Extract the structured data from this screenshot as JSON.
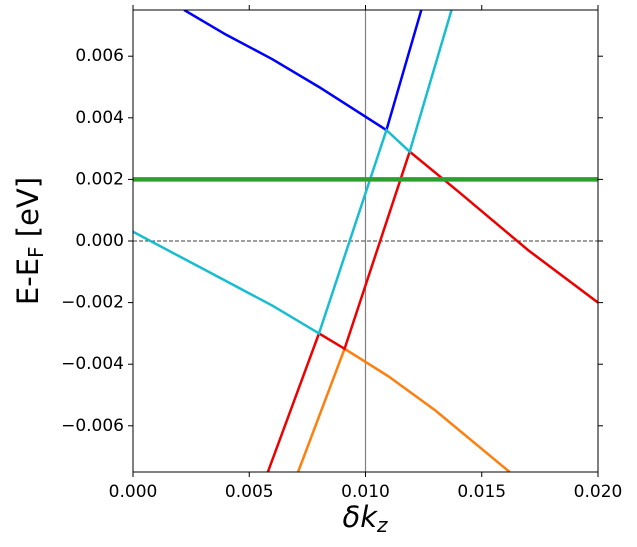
{
  "chart_data": {
    "type": "line",
    "xlabel": {
      "main": "δk",
      "sub": "z"
    },
    "ylabel": {
      "main": "E-E",
      "sub": "F",
      "unit": " [eV]"
    },
    "xlim": [
      0,
      0.02
    ],
    "ylim": [
      -0.0075,
      0.0075
    ],
    "xticks": [
      {
        "value": 0,
        "label": "0.000"
      },
      {
        "value": 0.005,
        "label": "0.005"
      },
      {
        "value": 0.01,
        "label": "0.010"
      },
      {
        "value": 0.015,
        "label": "0.015"
      },
      {
        "value": 0.02,
        "label": "0.020"
      }
    ],
    "yticks": [
      {
        "value": -0.006,
        "label": "−0.006"
      },
      {
        "value": -0.004,
        "label": "−0.004"
      },
      {
        "value": -0.002,
        "label": "−0.002"
      },
      {
        "value": 0,
        "label": "0.000"
      },
      {
        "value": 0.002,
        "label": "0.002"
      },
      {
        "value": 0.004,
        "label": "0.004"
      },
      {
        "value": 0.006,
        "label": "0.006"
      }
    ],
    "hlines": [
      {
        "y": 0,
        "color": "#000000",
        "dashed": true
      }
    ],
    "vlines": [
      {
        "x": 0.01,
        "color": "#808080",
        "dashed": false
      }
    ],
    "series": [
      {
        "color": "#0000ff",
        "width": 2.5,
        "x": [
          0.0022,
          0.004,
          0.006,
          0.008,
          0.0109,
          0.0124
        ],
        "values": [
          0.0075,
          0.0067,
          0.0059,
          0.005,
          0.0036,
          0.0075
        ]
      },
      {
        "color": "#ff7f0e",
        "width": 2.5,
        "x": [
          0.0071,
          0.0091,
          0.011,
          0.013,
          0.0162
        ],
        "values": [
          -0.0075,
          -0.0035,
          -0.0044,
          -0.0055,
          -0.0075
        ]
      },
      {
        "color": "#ee0000",
        "width": 2.5,
        "x": [
          0.0058,
          0.008,
          0.0091,
          0.0119,
          0.014,
          0.017,
          0.02
        ],
        "values": [
          -0.0075,
          -0.003,
          -0.0035,
          0.0029,
          0.0016,
          -0.0003,
          -0.002
        ]
      },
      {
        "color": "#17becf",
        "width": 2.5,
        "x": [
          0,
          0.002,
          0.004,
          0.006,
          0.008,
          0.0109,
          0.0119,
          0.0137
        ],
        "values": [
          0.0003,
          -0.0005,
          -0.0013,
          -0.0021,
          -0.003,
          0.0036,
          0.0029,
          0.0075
        ]
      },
      {
        "color": "#2ca02c",
        "width": 4.5,
        "x": [
          0,
          0.02
        ],
        "values": [
          0.002,
          0.002
        ]
      }
    ]
  }
}
